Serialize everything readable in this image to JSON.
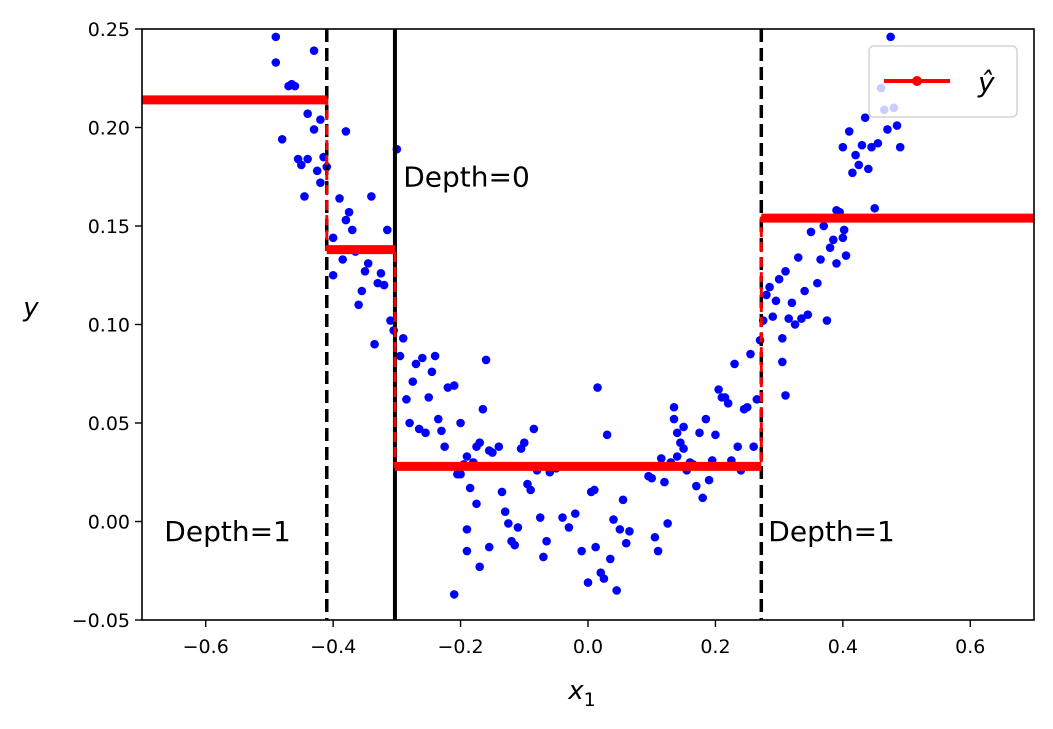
{
  "chart_data": {
    "type": "scatter",
    "xlabel": "x",
    "xlabel_sub": "1",
    "ylabel": "y",
    "xlim": [
      -0.7,
      0.7
    ],
    "ylim": [
      -0.05,
      0.25
    ],
    "xticks": [
      -0.6,
      -0.4,
      -0.2,
      0.0,
      0.2,
      0.4,
      0.6
    ],
    "xtick_labels": [
      "−0.6",
      "−0.4",
      "−0.2",
      "0.0",
      "0.2",
      "0.4",
      "0.6"
    ],
    "yticks": [
      -0.05,
      0.0,
      0.05,
      0.1,
      0.15,
      0.2,
      0.25
    ],
    "ytick_labels": [
      "−0.05",
      "0.00",
      "0.05",
      "0.10",
      "0.15",
      "0.20",
      "0.25"
    ],
    "grid": false,
    "legend": {
      "placement": "top-right",
      "label": "ŷ"
    },
    "colors": {
      "points": "#0000ff",
      "prediction": "#ff0000",
      "split_lines": "#000000"
    },
    "points": [
      [
        -0.49,
        0.246
      ],
      [
        -0.49,
        0.233
      ],
      [
        -0.48,
        0.194
      ],
      [
        -0.47,
        0.221
      ],
      [
        -0.46,
        0.221
      ],
      [
        -0.465,
        0.222
      ],
      [
        -0.455,
        0.184
      ],
      [
        -0.45,
        0.181
      ],
      [
        -0.445,
        0.165
      ],
      [
        -0.44,
        0.207
      ],
      [
        -0.44,
        0.184
      ],
      [
        -0.43,
        0.239
      ],
      [
        -0.43,
        0.199
      ],
      [
        -0.425,
        0.178
      ],
      [
        -0.42,
        0.172
      ],
      [
        -0.42,
        0.204
      ],
      [
        -0.415,
        0.185
      ],
      [
        -0.41,
        0.18
      ],
      [
        -0.4,
        0.144
      ],
      [
        -0.4,
        0.125
      ],
      [
        -0.39,
        0.164
      ],
      [
        -0.385,
        0.133
      ],
      [
        -0.38,
        0.153
      ],
      [
        -0.38,
        0.198
      ],
      [
        -0.375,
        0.157
      ],
      [
        -0.37,
        0.148
      ],
      [
        -0.365,
        0.137
      ],
      [
        -0.36,
        0.11
      ],
      [
        -0.355,
        0.117
      ],
      [
        -0.35,
        0.127
      ],
      [
        -0.345,
        0.131
      ],
      [
        -0.34,
        0.165
      ],
      [
        -0.335,
        0.09
      ],
      [
        -0.33,
        0.121
      ],
      [
        -0.325,
        0.126
      ],
      [
        -0.32,
        0.12
      ],
      [
        -0.315,
        0.148
      ],
      [
        -0.31,
        0.102
      ],
      [
        -0.305,
        0.097
      ],
      [
        -0.3,
        0.189
      ],
      [
        -0.295,
        0.084
      ],
      [
        -0.29,
        0.093
      ],
      [
        -0.285,
        0.062
      ],
      [
        -0.28,
        0.05
      ],
      [
        -0.275,
        0.071
      ],
      [
        -0.27,
        0.08
      ],
      [
        -0.265,
        0.047
      ],
      [
        -0.26,
        0.083
      ],
      [
        -0.255,
        0.045
      ],
      [
        -0.25,
        0.063
      ],
      [
        -0.245,
        0.076
      ],
      [
        -0.24,
        0.084
      ],
      [
        -0.235,
        0.052
      ],
      [
        -0.23,
        0.046
      ],
      [
        -0.225,
        0.038
      ],
      [
        -0.22,
        0.068
      ],
      [
        -0.21,
        0.069
      ],
      [
        -0.205,
        0.024
      ],
      [
        -0.2,
        0.05
      ],
      [
        -0.195,
        0.029
      ],
      [
        -0.19,
        0.033
      ],
      [
        -0.185,
        0.017
      ],
      [
        -0.18,
        0.03
      ],
      [
        -0.175,
        0.038
      ],
      [
        -0.17,
        0.04
      ],
      [
        -0.165,
        0.057
      ],
      [
        -0.16,
        0.082
      ],
      [
        -0.155,
        0.036
      ],
      [
        -0.15,
        0.035
      ],
      [
        -0.145,
        0.028
      ],
      [
        -0.14,
        0.038
      ],
      [
        -0.135,
        0.015
      ],
      [
        -0.13,
        0.005
      ],
      [
        -0.125,
        -0.001
      ],
      [
        -0.12,
        -0.01
      ],
      [
        -0.115,
        -0.012
      ],
      [
        -0.11,
        -0.003
      ],
      [
        -0.105,
        0.037
      ],
      [
        -0.1,
        0.04
      ],
      [
        -0.095,
        0.019
      ],
      [
        -0.09,
        0.016
      ],
      [
        -0.085,
        0.047
      ],
      [
        -0.08,
        0.026
      ],
      [
        -0.075,
        0.002
      ],
      [
        -0.07,
        -0.018
      ],
      [
        -0.065,
        -0.01
      ],
      [
        -0.06,
        0.025
      ],
      [
        -0.05,
        0.027
      ],
      [
        -0.04,
        0.002
      ],
      [
        -0.03,
        -0.003
      ],
      [
        -0.02,
        0.004
      ],
      [
        -0.01,
        -0.015
      ],
      [
        0.0,
        -0.031
      ],
      [
        0.005,
        0.015
      ],
      [
        0.01,
        0.016
      ],
      [
        0.012,
        -0.013
      ],
      [
        0.015,
        0.068
      ],
      [
        0.02,
        -0.026
      ],
      [
        0.025,
        -0.029
      ],
      [
        0.03,
        0.044
      ],
      [
        0.035,
        -0.019
      ],
      [
        0.04,
        0.001
      ],
      [
        0.045,
        -0.035
      ],
      [
        0.05,
        -0.004
      ],
      [
        0.055,
        0.011
      ],
      [
        0.06,
        -0.011
      ],
      [
        0.065,
        -0.005
      ],
      [
        -0.21,
        -0.037
      ],
      [
        -0.19,
        -0.015
      ],
      [
        -0.17,
        -0.023
      ],
      [
        -0.155,
        -0.013
      ],
      [
        -0.19,
        -0.004
      ],
      [
        -0.175,
        0.009
      ],
      [
        -0.2,
        0.024
      ],
      [
        0.1,
        0.022
      ],
      [
        0.105,
        -0.008
      ],
      [
        0.11,
        -0.015
      ],
      [
        0.115,
        0.032
      ],
      [
        0.12,
        0.02
      ],
      [
        0.125,
        -0.001
      ],
      [
        0.13,
        0.03
      ],
      [
        0.135,
        0.052
      ],
      [
        0.14,
        0.045
      ],
      [
        0.145,
        0.04
      ],
      [
        0.15,
        0.037
      ],
      [
        0.155,
        0.026
      ],
      [
        0.16,
        0.03
      ],
      [
        0.165,
        0.029
      ],
      [
        0.17,
        0.018
      ],
      [
        0.175,
        0.045
      ],
      [
        0.18,
        0.012
      ],
      [
        0.185,
        0.052
      ],
      [
        0.19,
        0.021
      ],
      [
        0.195,
        0.031
      ],
      [
        0.2,
        0.044
      ],
      [
        0.205,
        0.067
      ],
      [
        0.21,
        0.063
      ],
      [
        0.215,
        0.063
      ],
      [
        0.22,
        0.06
      ],
      [
        0.225,
        0.031
      ],
      [
        0.23,
        0.08
      ],
      [
        0.235,
        0.038
      ],
      [
        0.24,
        0.026
      ],
      [
        0.245,
        0.057
      ],
      [
        0.25,
        0.058
      ],
      [
        0.255,
        0.085
      ],
      [
        0.26,
        0.038
      ],
      [
        0.265,
        0.062
      ],
      [
        0.27,
        0.092
      ],
      [
        0.135,
        0.058
      ],
      [
        0.095,
        0.023
      ],
      [
        0.14,
        0.033
      ],
      [
        0.15,
        0.048
      ],
      [
        0.275,
        0.102
      ],
      [
        0.28,
        0.115
      ],
      [
        0.285,
        0.119
      ],
      [
        0.29,
        0.104
      ],
      [
        0.295,
        0.112
      ],
      [
        0.3,
        0.123
      ],
      [
        0.305,
        0.093
      ],
      [
        0.31,
        0.127
      ],
      [
        0.315,
        0.103
      ],
      [
        0.32,
        0.111
      ],
      [
        0.325,
        0.1
      ],
      [
        0.33,
        0.134
      ],
      [
        0.335,
        0.103
      ],
      [
        0.34,
        0.117
      ],
      [
        0.345,
        0.105
      ],
      [
        0.35,
        0.147
      ],
      [
        0.355,
        0.154
      ],
      [
        0.36,
        0.121
      ],
      [
        0.365,
        0.133
      ],
      [
        0.37,
        0.15
      ],
      [
        0.375,
        0.102
      ],
      [
        0.38,
        0.139
      ],
      [
        0.385,
        0.143
      ],
      [
        0.39,
        0.131
      ],
      [
        0.395,
        0.157
      ],
      [
        0.4,
        0.19
      ],
      [
        0.402,
        0.148
      ],
      [
        0.405,
        0.135
      ],
      [
        0.41,
        0.198
      ],
      [
        0.415,
        0.177
      ],
      [
        0.42,
        0.186
      ],
      [
        0.425,
        0.181
      ],
      [
        0.43,
        0.191
      ],
      [
        0.435,
        0.205
      ],
      [
        0.44,
        0.179
      ],
      [
        0.445,
        0.19
      ],
      [
        0.45,
        0.159
      ],
      [
        0.455,
        0.192
      ],
      [
        0.46,
        0.22
      ],
      [
        0.465,
        0.209
      ],
      [
        0.47,
        0.199
      ],
      [
        0.475,
        0.246
      ],
      [
        0.48,
        0.21
      ],
      [
        0.485,
        0.201
      ],
      [
        0.49,
        0.19
      ],
      [
        0.305,
        0.081
      ],
      [
        0.31,
        0.064
      ],
      [
        0.39,
        0.158
      ],
      [
        0.4,
        0.144
      ]
    ],
    "prediction_segments": [
      {
        "x": [
          -0.7,
          -0.41
        ],
        "y": 0.214
      },
      {
        "x": [
          -0.41,
          -0.303
        ],
        "y": 0.138
      },
      {
        "x": [
          -0.303,
          0.272
        ],
        "y": 0.028
      },
      {
        "x": [
          0.272,
          0.7
        ],
        "y": 0.154
      }
    ],
    "split_lines": [
      {
        "x": -0.303,
        "style": "solid",
        "depth": 0
      },
      {
        "x": -0.41,
        "style": "dashed",
        "depth": 1
      },
      {
        "x": 0.272,
        "style": "dashed",
        "depth": 1
      }
    ],
    "annotations": [
      {
        "text": "Depth=0",
        "x": -0.29,
        "y": 0.17
      },
      {
        "text": "Depth=1",
        "x": -0.665,
        "y": -0.01
      },
      {
        "text": "Depth=1",
        "x": 0.283,
        "y": -0.01
      }
    ]
  }
}
